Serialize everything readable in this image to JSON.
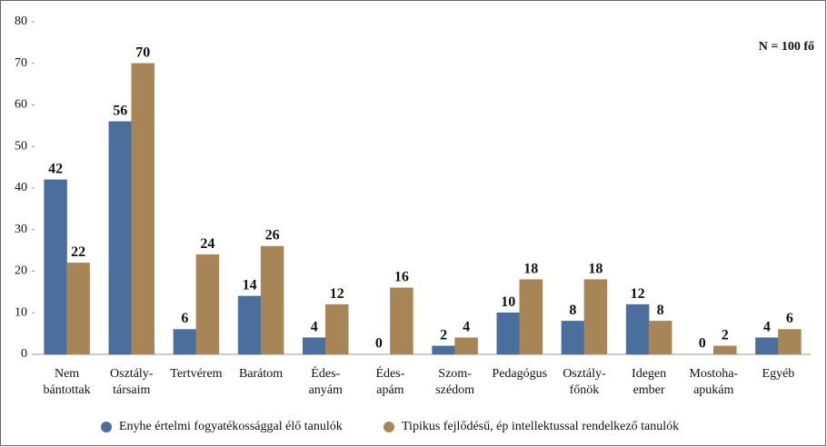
{
  "chart_data": {
    "type": "bar",
    "annotation": "N = 100 fő",
    "categories": [
      "Nem\nbántottak",
      "Osztály-\ntársaim",
      "Tertvérem",
      "Barátom",
      "Édes-\nanyám",
      "Édes-\napám",
      "Szom-\nszédom",
      "Pedagógus",
      "Osztály-\nfőnök",
      "Idegen\nember",
      "Mostoha-\napukám",
      "Egyéb"
    ],
    "series": [
      {
        "name": "Enyhe értelmi fogyatékossággal élő tanulók",
        "color": "#4a6f9c",
        "values": [
          42,
          56,
          6,
          14,
          4,
          0,
          2,
          10,
          8,
          12,
          0,
          4
        ]
      },
      {
        "name": "Tipikus fejlődésű, ép intellektussal rendelkező tanulók",
        "color": "#a88556",
        "values": [
          22,
          70,
          24,
          26,
          12,
          16,
          4,
          18,
          18,
          8,
          2,
          6
        ]
      }
    ],
    "ylim": [
      0,
      80
    ],
    "yticks": [
      0,
      10,
      20,
      30,
      40,
      50,
      60,
      70,
      80
    ],
    "grid": false,
    "legend": "bottom"
  }
}
